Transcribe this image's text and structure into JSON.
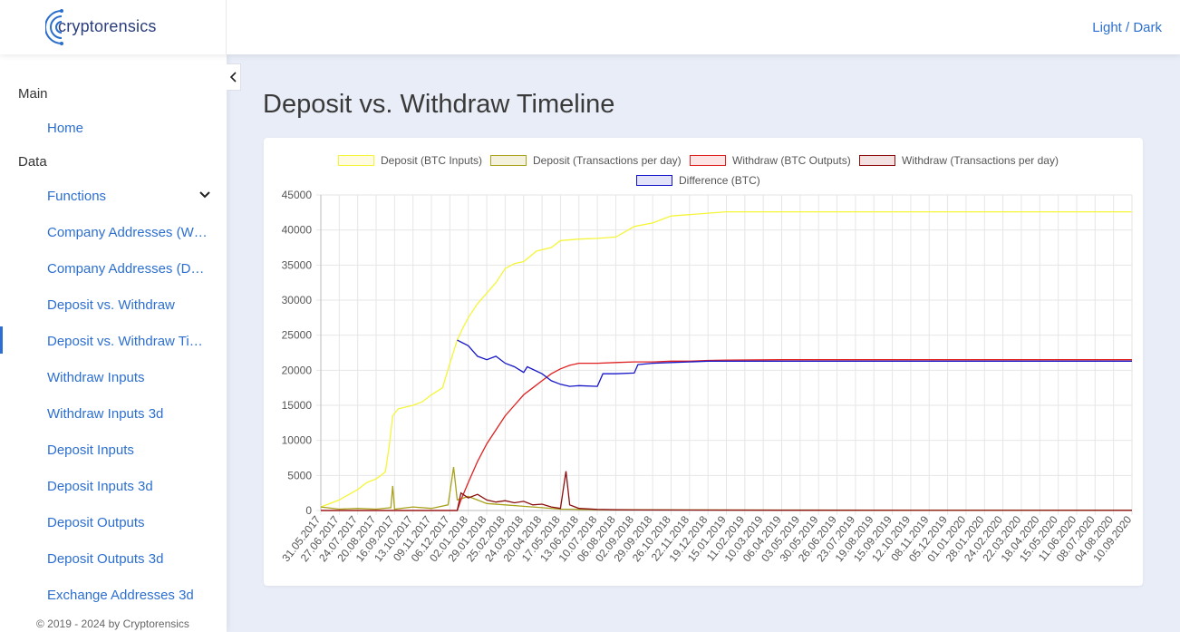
{
  "brand": {
    "name": "cryptorensics"
  },
  "header": {
    "theme_toggle": "Light / Dark"
  },
  "sidebar": {
    "sections": [
      {
        "label": "Main"
      },
      {
        "label": "Data"
      }
    ],
    "items": [
      {
        "label": "Home"
      },
      {
        "label": "Functions"
      },
      {
        "label": "Company Addresses (Withdraw)"
      },
      {
        "label": "Company Addresses (Deposit)"
      },
      {
        "label": "Deposit vs. Withdraw"
      },
      {
        "label": "Deposit vs. Withdraw Timeline"
      },
      {
        "label": "Withdraw Inputs"
      },
      {
        "label": "Withdraw Inputs 3d"
      },
      {
        "label": "Deposit Inputs"
      },
      {
        "label": "Deposit Inputs 3d"
      },
      {
        "label": "Deposit Outputs"
      },
      {
        "label": "Deposit Outputs 3d"
      },
      {
        "label": "Exchange Addresses 3d"
      }
    ],
    "active_item": "Deposit vs. Withdraw Timeline",
    "footer": "© 2019 - 2024 by Cryptorensics"
  },
  "main": {
    "title": "Deposit vs. Withdraw Timeline"
  },
  "colors": {
    "deposit_btc": "#f5f53a",
    "deposit_tx": "#a8a21c",
    "withdraw_btc": "#e02020",
    "withdraw_tx": "#8b0d0d",
    "difference": "#1616c8",
    "accent": "#2c6fd1"
  },
  "chart_data": {
    "type": "line",
    "title": "",
    "xlabel": "",
    "ylabel": "",
    "ylim": [
      0,
      45000
    ],
    "y_ticks": [
      0,
      5000,
      10000,
      15000,
      20000,
      25000,
      30000,
      35000,
      40000,
      45000
    ],
    "grid": true,
    "legend_position": "top",
    "x_ticks": [
      "31.05.2017",
      "27.06.2017",
      "24.07.2017",
      "20.08.2017",
      "16.09.2017",
      "13.10.2017",
      "09.11.2017",
      "06.12.2017",
      "02.01.2018",
      "29.01.2018",
      "25.02.2018",
      "24.03.2018",
      "20.04.2018",
      "17.05.2018",
      "13.06.2018",
      "10.07.2018",
      "06.08.2018",
      "02.09.2018",
      "29.09.2018",
      "26.10.2018",
      "22.11.2018",
      "19.12.2018",
      "15.01.2019",
      "11.02.2019",
      "10.03.2019",
      "06.04.2019",
      "03.05.2019",
      "30.05.2019",
      "26.06.2019",
      "23.07.2019",
      "19.08.2019",
      "15.09.2019",
      "12.10.2019",
      "08.11.2019",
      "05.12.2019",
      "01.01.2020",
      "28.01.2020",
      "24.02.2020",
      "22.03.2020",
      "18.04.2020",
      "15.05.2020",
      "11.06.2020",
      "08.07.2020",
      "04.08.2020",
      "10.09.2020"
    ],
    "series": [
      {
        "name": "Deposit (BTC Inputs)",
        "color_key": "deposit_btc",
        "points": [
          [
            0,
            500
          ],
          [
            1,
            1500
          ],
          [
            2,
            3000
          ],
          [
            2.5,
            4000
          ],
          [
            3,
            4500
          ],
          [
            3.5,
            5500
          ],
          [
            3.7,
            9000
          ],
          [
            3.9,
            13500
          ],
          [
            4.2,
            14500
          ],
          [
            5,
            15000
          ],
          [
            5.5,
            15500
          ],
          [
            6,
            16500
          ],
          [
            6.6,
            17500
          ],
          [
            7,
            21000
          ],
          [
            7.4,
            24300
          ],
          [
            7.7,
            26000
          ],
          [
            8,
            27500
          ],
          [
            8.5,
            29500
          ],
          [
            9,
            31000
          ],
          [
            9.5,
            32500
          ],
          [
            10,
            34500
          ],
          [
            10.5,
            35200
          ],
          [
            11,
            35500
          ],
          [
            11.7,
            37000
          ],
          [
            12.5,
            37500
          ],
          [
            13,
            38500
          ],
          [
            14,
            38700
          ],
          [
            15,
            38800
          ],
          [
            16,
            39000
          ],
          [
            17,
            40500
          ],
          [
            18,
            41000
          ],
          [
            19,
            42000
          ],
          [
            20,
            42200
          ],
          [
            21,
            42400
          ],
          [
            22,
            42600
          ],
          [
            25,
            42600
          ],
          [
            30,
            42600
          ],
          [
            44,
            42600
          ]
        ]
      },
      {
        "name": "Deposit (Transactions per day)",
        "color_key": "deposit_tx",
        "points": [
          [
            0,
            500
          ],
          [
            1,
            200
          ],
          [
            2,
            300
          ],
          [
            3,
            200
          ],
          [
            3.8,
            400
          ],
          [
            3.9,
            3500
          ],
          [
            4,
            200
          ],
          [
            5,
            500
          ],
          [
            6,
            300
          ],
          [
            6.9,
            800
          ],
          [
            7.2,
            6200
          ],
          [
            7.4,
            1500
          ],
          [
            8,
            2000
          ],
          [
            9,
            1000
          ],
          [
            10,
            800
          ],
          [
            11,
            600
          ],
          [
            12,
            400
          ],
          [
            13,
            200
          ],
          [
            14,
            150
          ],
          [
            15,
            120
          ],
          [
            16,
            100
          ],
          [
            20,
            80
          ],
          [
            25,
            60
          ],
          [
            30,
            40
          ],
          [
            44,
            30
          ]
        ]
      },
      {
        "name": "Withdraw (BTC Outputs)",
        "color_key": "withdraw_btc",
        "points": [
          [
            0,
            0
          ],
          [
            7.4,
            0
          ],
          [
            7.6,
            1500
          ],
          [
            8,
            4000
          ],
          [
            8.5,
            7000
          ],
          [
            9,
            9500
          ],
          [
            9.5,
            11500
          ],
          [
            10,
            13500
          ],
          [
            10.5,
            15000
          ],
          [
            11,
            16500
          ],
          [
            11.5,
            17500
          ],
          [
            12,
            18500
          ],
          [
            12.5,
            19500
          ],
          [
            13,
            20200
          ],
          [
            13.5,
            20700
          ],
          [
            14,
            21000
          ],
          [
            15,
            21000
          ],
          [
            16,
            21100
          ],
          [
            17,
            21200
          ],
          [
            18,
            21200
          ],
          [
            19,
            21300
          ],
          [
            20,
            21300
          ],
          [
            21,
            21400
          ],
          [
            22,
            21450
          ],
          [
            25,
            21500
          ],
          [
            30,
            21500
          ],
          [
            44,
            21500
          ]
        ]
      },
      {
        "name": "Withdraw (Transactions per day)",
        "color_key": "withdraw_tx",
        "points": [
          [
            0,
            0
          ],
          [
            7.4,
            0
          ],
          [
            7.6,
            2500
          ],
          [
            8,
            1800
          ],
          [
            8.5,
            2300
          ],
          [
            9,
            1500
          ],
          [
            9.5,
            1200
          ],
          [
            10,
            1400
          ],
          [
            10.5,
            1100
          ],
          [
            11,
            1300
          ],
          [
            11.5,
            800
          ],
          [
            12,
            900
          ],
          [
            12.5,
            500
          ],
          [
            13,
            300
          ],
          [
            13.3,
            5600
          ],
          [
            13.5,
            800
          ],
          [
            14,
            300
          ],
          [
            15,
            150
          ],
          [
            16,
            100
          ],
          [
            17,
            80
          ],
          [
            20,
            60
          ],
          [
            25,
            40
          ],
          [
            44,
            20
          ]
        ]
      },
      {
        "name": "Difference (BTC)",
        "color_key": "difference",
        "points": [
          [
            7.4,
            24300
          ],
          [
            8,
            23500
          ],
          [
            8.5,
            22000
          ],
          [
            9,
            21500
          ],
          [
            9.5,
            22000
          ],
          [
            10,
            21000
          ],
          [
            10.5,
            20500
          ],
          [
            11,
            19700
          ],
          [
            11.2,
            20500
          ],
          [
            12,
            19500
          ],
          [
            12.5,
            18500
          ],
          [
            13,
            18000
          ],
          [
            13.5,
            17700
          ],
          [
            14,
            17800
          ],
          [
            15,
            17700
          ],
          [
            15.3,
            19500
          ],
          [
            16,
            19500
          ],
          [
            17,
            19600
          ],
          [
            17.2,
            20800
          ],
          [
            18,
            21000
          ],
          [
            19,
            21100
          ],
          [
            20,
            21200
          ],
          [
            21,
            21300
          ],
          [
            25,
            21300
          ],
          [
            44,
            21300
          ]
        ]
      }
    ]
  }
}
